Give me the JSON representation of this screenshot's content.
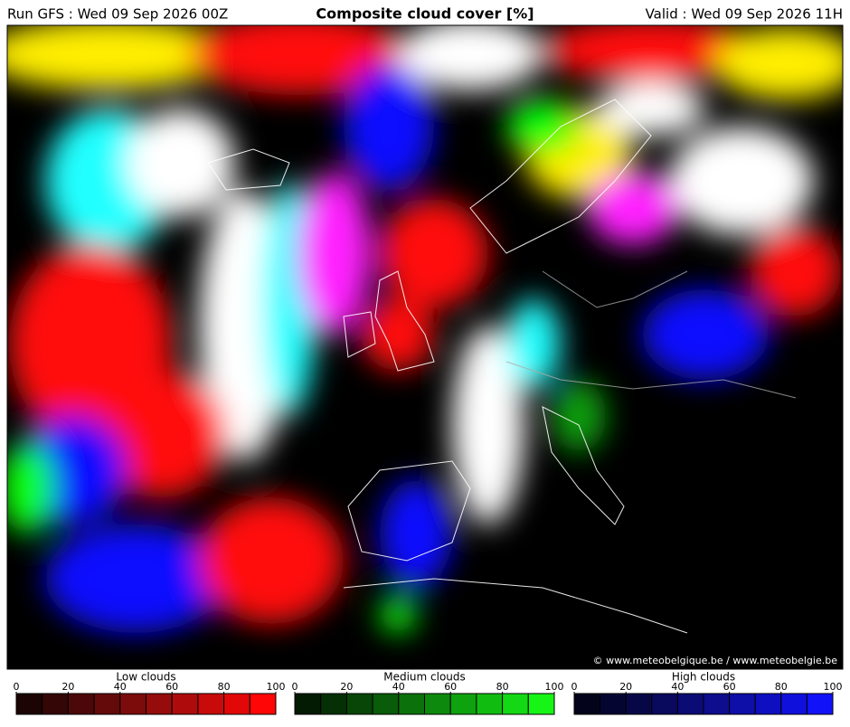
{
  "header": {
    "left": "Run GFS : Wed 09 Sep 2026 00Z",
    "title": "Composite cloud cover [%]",
    "right": "Valid : Wed 09 Sep 2026 11H"
  },
  "map": {
    "copyright": "© www.meteobelgique.be / www.meteobelgie.be"
  },
  "legends": [
    {
      "name": "Low clouds",
      "lim": [
        0,
        100
      ],
      "ticks": [
        0,
        20,
        40,
        60,
        80,
        100
      ],
      "colors": [
        "#1c0404",
        "#340606",
        "#4c0808",
        "#640a0a",
        "#7c0c0c",
        "#960c0c",
        "#ae0c0c",
        "#c80a0a",
        "#e20808",
        "#ff0606"
      ]
    },
    {
      "name": "Medium clouds",
      "lim": [
        0,
        100
      ],
      "ticks": [
        0,
        20,
        40,
        60,
        80,
        100
      ],
      "colors": [
        "#031a03",
        "#053005",
        "#074607",
        "#095c09",
        "#0b720b",
        "#0d8a0d",
        "#0fa20f",
        "#11bc11",
        "#13d813",
        "#16f516"
      ]
    },
    {
      "name": "High clouds",
      "lim": [
        0,
        100
      ],
      "ticks": [
        0,
        20,
        40,
        60,
        80,
        100
      ],
      "colors": [
        "#03031c",
        "#050532",
        "#070748",
        "#09095e",
        "#0b0b76",
        "#0d0d8e",
        "#0e0ea8",
        "#0f0fc2",
        "#1010dc",
        "#1212f8"
      ]
    }
  ]
}
